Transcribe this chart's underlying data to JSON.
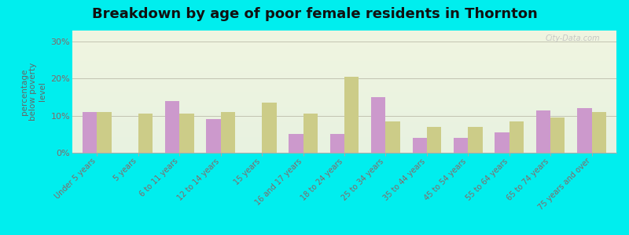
{
  "title": "Breakdown by age of poor female residents in Thornton",
  "ylabel": "percentage\nbelow poverty\nlevel",
  "categories": [
    "Under 5 years",
    "5 years",
    "6 to 11 years",
    "12 to 14 years",
    "15 years",
    "16 and 17 years",
    "18 to 24 years",
    "25 to 34 years",
    "35 to 44 years",
    "45 to 54 years",
    "55 to 64 years",
    "65 to 74 years",
    "75 years and over"
  ],
  "thornton_vals": [
    11,
    0,
    14,
    9,
    0,
    5,
    5,
    15,
    4,
    4,
    5.5,
    11.5,
    12
  ],
  "colorado_vals": [
    11,
    10.5,
    10.5,
    11,
    13.5,
    10.5,
    20.5,
    8.5,
    7,
    7,
    8.5,
    9.5,
    11
  ],
  "thornton_color": "#cc99cc",
  "colorado_color": "#cccc88",
  "outer_bg": "#00eeee",
  "plot_bg_top": "#f0f5e0",
  "plot_bg_bottom": "#e8f2e0",
  "yticks": [
    0,
    10,
    20,
    30
  ],
  "ylabels": [
    "0%",
    "10%",
    "20%",
    "30%"
  ],
  "ylim": [
    0,
    33
  ],
  "bar_width": 0.35,
  "title_fontsize": 13,
  "tick_label_color": "#886666",
  "ylabel_color": "#666666",
  "watermark": "City-Data.com"
}
